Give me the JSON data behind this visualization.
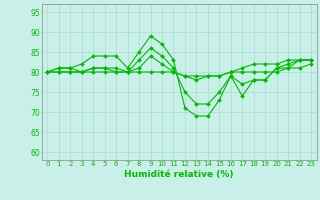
{
  "title": "",
  "xlabel": "Humidité relative (%)",
  "ylabel": "",
  "background_color": "#c8f0e8",
  "grid_color": "#aaddcc",
  "line_color": "#00bb00",
  "marker_color": "#00bb00",
  "xlim": [
    -0.5,
    23.5
  ],
  "ylim": [
    58,
    97
  ],
  "yticks": [
    60,
    65,
    70,
    75,
    80,
    85,
    90,
    95
  ],
  "xticks": [
    0,
    1,
    2,
    3,
    4,
    5,
    6,
    7,
    8,
    9,
    10,
    11,
    12,
    13,
    14,
    15,
    16,
    17,
    18,
    19,
    20,
    21,
    22,
    23
  ],
  "series": [
    [
      80,
      81,
      81,
      82,
      84,
      84,
      84,
      81,
      85,
      89,
      87,
      83,
      71,
      69,
      69,
      73,
      79,
      74,
      78,
      78,
      81,
      82,
      83,
      83
    ],
    [
      80,
      81,
      81,
      80,
      81,
      81,
      80,
      80,
      81,
      84,
      82,
      80,
      79,
      78,
      79,
      79,
      80,
      81,
      82,
      82,
      82,
      83,
      83,
      83
    ],
    [
      80,
      80,
      80,
      80,
      80,
      80,
      80,
      80,
      80,
      80,
      80,
      80,
      79,
      79,
      79,
      79,
      80,
      80,
      80,
      80,
      80,
      81,
      81,
      82
    ],
    [
      80,
      80,
      80,
      80,
      81,
      81,
      81,
      80,
      83,
      86,
      84,
      81,
      75,
      72,
      72,
      75,
      79,
      77,
      78,
      78,
      81,
      81,
      83,
      83
    ]
  ]
}
